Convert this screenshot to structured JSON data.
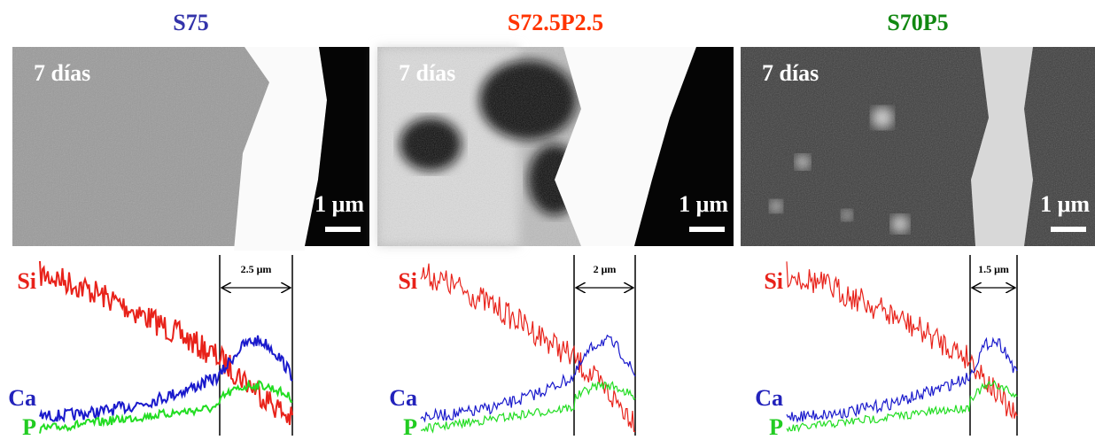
{
  "panels": [
    {
      "title": "S75",
      "image_label": "7 días",
      "scale_label": "1 μm",
      "width_label": "2.5 μm",
      "line_labels": [
        "Si",
        "Ca",
        "P"
      ]
    },
    {
      "title": "S72.5P2.5",
      "image_label": "7 días",
      "scale_label": "1 μm",
      "width_label": "2 μm",
      "line_labels": [
        "Si",
        "Ca",
        "P"
      ]
    },
    {
      "title": "S70P5",
      "image_label": "7 días",
      "scale_label": "1 μm",
      "width_label": "1.5 μm",
      "line_labels": [
        "Si",
        "Ca",
        "P"
      ]
    }
  ]
}
